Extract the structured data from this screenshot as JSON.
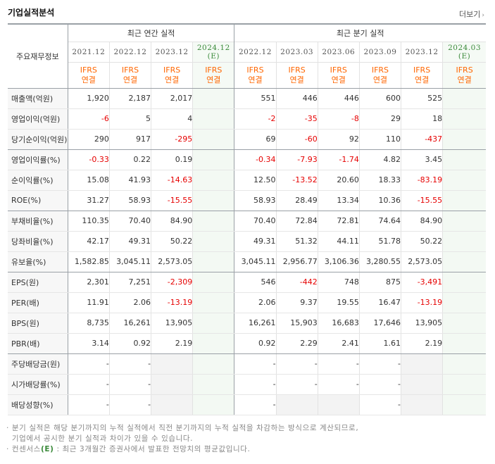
{
  "header": {
    "title": "기업실적분석",
    "more_label": "더보기",
    "more_icon": "chevron-right"
  },
  "table": {
    "label_header": "주요재무정보",
    "annual_header": "최근 연간 실적",
    "quarter_header": "최근 분기 실적",
    "annual_periods": [
      "2021.12",
      "2022.12",
      "2023.12",
      "2024.12\n(E)"
    ],
    "quarter_periods": [
      "2022.12",
      "2023.03",
      "2023.06",
      "2023.09",
      "2023.12",
      "2024.03\n(E)"
    ],
    "basis_line1": "IFRS",
    "basis_line2": "연결",
    "rows": [
      {
        "label": "매출액(억원)",
        "annual": [
          "1,920",
          "2,187",
          "2,017",
          ""
        ],
        "quarter": [
          "551",
          "446",
          "446",
          "600",
          "525",
          ""
        ]
      },
      {
        "label": "영업이익(억원)",
        "annual": [
          "-6",
          "5",
          "4",
          ""
        ],
        "quarter": [
          "-2",
          "-35",
          "-8",
          "29",
          "18",
          ""
        ]
      },
      {
        "label": "당기순이익(억원)",
        "annual": [
          "290",
          "917",
          "-295",
          ""
        ],
        "quarter": [
          "69",
          "-60",
          "92",
          "110",
          "-437",
          ""
        ]
      },
      {
        "label": "영업이익률(%)",
        "annual": [
          "-0.33",
          "0.22",
          "0.19",
          ""
        ],
        "quarter": [
          "-0.34",
          "-7.93",
          "-1.74",
          "4.82",
          "3.45",
          ""
        ]
      },
      {
        "label": "순이익률(%)",
        "annual": [
          "15.08",
          "41.93",
          "-14.63",
          ""
        ],
        "quarter": [
          "12.50",
          "-13.52",
          "20.60",
          "18.33",
          "-83.19",
          ""
        ]
      },
      {
        "label": "ROE(%)",
        "annual": [
          "31.27",
          "58.93",
          "-15.55",
          ""
        ],
        "quarter": [
          "58.93",
          "28.49",
          "13.34",
          "10.36",
          "-15.55",
          ""
        ]
      },
      {
        "label": "부채비율(%)",
        "annual": [
          "110.35",
          "70.40",
          "84.90",
          ""
        ],
        "quarter": [
          "70.40",
          "72.84",
          "72.81",
          "74.64",
          "84.90",
          ""
        ]
      },
      {
        "label": "당좌비율(%)",
        "annual": [
          "42.17",
          "49.31",
          "50.22",
          ""
        ],
        "quarter": [
          "49.31",
          "51.32",
          "44.11",
          "51.78",
          "50.22",
          ""
        ]
      },
      {
        "label": "유보율(%)",
        "annual": [
          "1,582.85",
          "3,045.11",
          "2,573.05",
          ""
        ],
        "quarter": [
          "3,045.11",
          "2,956.77",
          "3,106.36",
          "3,280.55",
          "2,573.05",
          ""
        ]
      },
      {
        "label": "EPS(원)",
        "annual": [
          "2,301",
          "7,251",
          "-2,309",
          ""
        ],
        "quarter": [
          "546",
          "-442",
          "748",
          "875",
          "-3,491",
          ""
        ]
      },
      {
        "label": "PER(배)",
        "annual": [
          "11.91",
          "2.06",
          "-13.19",
          ""
        ],
        "quarter": [
          "2.06",
          "9.37",
          "19.55",
          "16.47",
          "-13.19",
          ""
        ]
      },
      {
        "label": "BPS(원)",
        "annual": [
          "8,735",
          "16,261",
          "13,905",
          ""
        ],
        "quarter": [
          "16,261",
          "15,903",
          "16,683",
          "17,646",
          "13,905",
          ""
        ]
      },
      {
        "label": "PBR(배)",
        "annual": [
          "3.14",
          "0.92",
          "2.19",
          ""
        ],
        "quarter": [
          "0.92",
          "2.29",
          "2.41",
          "1.61",
          "2.19",
          ""
        ]
      },
      {
        "label": "주당배당금(원)",
        "annual": [
          "-",
          "-",
          null,
          ""
        ],
        "quarter": [
          "-",
          "-",
          "-",
          "-",
          null,
          ""
        ]
      },
      {
        "label": "시가배당률(%)",
        "annual": [
          "-",
          "-",
          null,
          ""
        ],
        "quarter": [
          "-",
          "-",
          "-",
          "-",
          null,
          ""
        ]
      },
      {
        "label": "배당성향(%)",
        "annual": [
          "-",
          "-",
          null,
          ""
        ],
        "quarter": [
          "-",
          null,
          null,
          "-",
          null,
          ""
        ]
      }
    ],
    "group_ends": [
      2,
      5,
      8,
      12
    ]
  },
  "notes": {
    "line1": "분기 실적은 해당 분기까지의 누적 실적에서 직전 분기까지의 누적 실적을 차감하는 방식으로 계산되므로,",
    "line2": "기업에서 공시한 분기 실적과 차이가 있을 수 있습니다.",
    "line3_prefix": "컨센서스",
    "line3_badge": "(E)",
    "line3_suffix": ": 최근 3개월간 증권사에서 발표한 전망치의 평균값입니다."
  },
  "colors": {
    "negative": "#e60000",
    "basis": "#ff6600",
    "estimate_bg": "#f3f9f3",
    "label_bg": "#f7f7f7"
  }
}
